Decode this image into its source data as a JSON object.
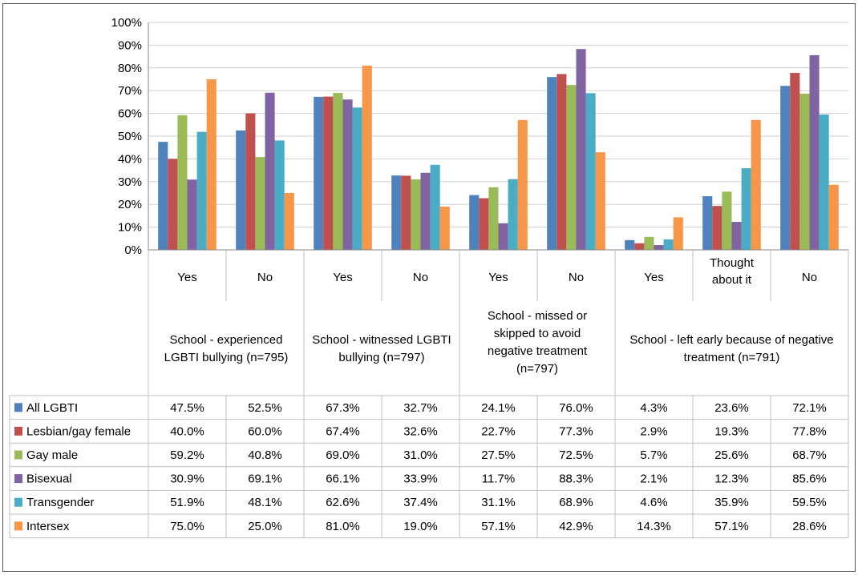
{
  "chart_data": {
    "type": "bar",
    "ylim": [
      0,
      100
    ],
    "y_ticks": [
      "0%",
      "10%",
      "20%",
      "30%",
      "40%",
      "50%",
      "60%",
      "70%",
      "80%",
      "90%",
      "100%"
    ],
    "grid": true,
    "legend": "data-table-rows",
    "categories": [
      "Yes",
      "No",
      "Yes",
      "No",
      "Yes",
      "No",
      "Yes",
      "Thought about it",
      "No"
    ],
    "groups": [
      {
        "label": "School - experienced LGBTI bullying (n=795)",
        "lines": [
          "School - experienced",
          "LGBTI bullying (n=795)"
        ],
        "span": 2
      },
      {
        "label": "School - witnessed LGBTI bullying (n=797)",
        "lines": [
          "School - witnessed LGBTI",
          "bullying (n=797)"
        ],
        "span": 2
      },
      {
        "label": "School - missed or skipped to avoid negative treatment (n=797)",
        "lines": [
          "School - missed or",
          "skipped to avoid",
          "negative treatment",
          "(n=797)"
        ],
        "span": 2
      },
      {
        "label": "School - left early because of negative treatment (n=791)",
        "lines": [
          "School - left early because of negative",
          "treatment (n=791)"
        ],
        "span": 3
      }
    ],
    "series": [
      {
        "name": "All LGBTI",
        "color": "#4f81bd",
        "values": [
          47.5,
          52.5,
          67.3,
          32.7,
          24.1,
          76.0,
          4.3,
          23.6,
          72.1
        ],
        "labels": [
          "47.5%",
          "52.5%",
          "67.3%",
          "32.7%",
          "24.1%",
          "76.0%",
          "4.3%",
          "23.6%",
          "72.1%"
        ]
      },
      {
        "name": "Lesbian/gay female",
        "color": "#c0504d",
        "values": [
          40.0,
          60.0,
          67.4,
          32.6,
          22.7,
          77.3,
          2.9,
          19.3,
          77.8
        ],
        "labels": [
          "40.0%",
          "60.0%",
          "67.4%",
          "32.6%",
          "22.7%",
          "77.3%",
          "2.9%",
          "19.3%",
          "77.8%"
        ]
      },
      {
        "name": "Gay male",
        "color": "#9bbb59",
        "values": [
          59.2,
          40.8,
          69.0,
          31.0,
          27.5,
          72.5,
          5.7,
          25.6,
          68.7
        ],
        "labels": [
          "59.2%",
          "40.8%",
          "69.0%",
          "31.0%",
          "27.5%",
          "72.5%",
          "5.7%",
          "25.6%",
          "68.7%"
        ]
      },
      {
        "name": "Bisexual",
        "color": "#8064a2",
        "values": [
          30.9,
          69.1,
          66.1,
          33.9,
          11.7,
          88.3,
          2.1,
          12.3,
          85.6
        ],
        "labels": [
          "30.9%",
          "69.1%",
          "66.1%",
          "33.9%",
          "11.7%",
          "88.3%",
          "2.1%",
          "12.3%",
          "85.6%"
        ]
      },
      {
        "name": "Transgender",
        "color": "#4bacc6",
        "values": [
          51.9,
          48.1,
          62.6,
          37.4,
          31.1,
          68.9,
          4.6,
          35.9,
          59.5
        ],
        "labels": [
          "51.9%",
          "48.1%",
          "62.6%",
          "37.4%",
          "31.1%",
          "68.9%",
          "4.6%",
          "35.9%",
          "59.5%"
        ]
      },
      {
        "name": "Intersex",
        "color": "#f79646",
        "values": [
          75.0,
          25.0,
          81.0,
          19.0,
          57.1,
          42.9,
          14.3,
          57.1,
          28.6
        ],
        "labels": [
          "75.0%",
          "25.0%",
          "81.0%",
          "19.0%",
          "57.1%",
          "42.9%",
          "14.3%",
          "57.1%",
          "28.6%"
        ]
      }
    ]
  }
}
